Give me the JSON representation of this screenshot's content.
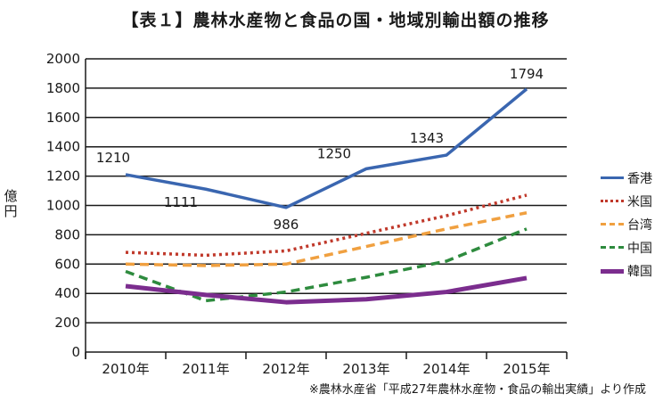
{
  "header": {
    "title": "【表１】農林水産物と食品の国・地域別輸出額の推移",
    "ylabel": "億円",
    "source": "※農林水産省「平成27年農林水産物・食品の輸出実績」より作成"
  },
  "chart_data": {
    "type": "line",
    "title": "【表１】農林水産物と食品の国・地域別輸出額の推移",
    "xlabel": "",
    "ylabel": "億円",
    "categories": [
      "2010年",
      "2011年",
      "2012年",
      "2013年",
      "2014年",
      "2015年"
    ],
    "ylim": [
      0,
      2000
    ],
    "yticks": [
      0,
      200,
      400,
      600,
      800,
      1000,
      1200,
      1400,
      1600,
      1800,
      2000
    ],
    "grid": true,
    "legend_position": "right",
    "series": [
      {
        "name": "香港",
        "values": [
          1210,
          1111,
          986,
          1250,
          1343,
          1794
        ],
        "color": "#3a66b0",
        "style": "solid",
        "labels": [
          "1210",
          "1111",
          "986",
          "1250",
          "1343",
          "1794"
        ]
      },
      {
        "name": "米国",
        "values": [
          680,
          660,
          690,
          810,
          930,
          1070
        ],
        "color": "#c0392b",
        "style": "dotted"
      },
      {
        "name": "台湾",
        "values": [
          600,
          590,
          600,
          720,
          840,
          950
        ],
        "color": "#f0a040",
        "style": "dashed"
      },
      {
        "name": "中国",
        "values": [
          550,
          350,
          410,
          510,
          620,
          840
        ],
        "color": "#2e8b3e",
        "style": "dashed"
      },
      {
        "name": "韓国",
        "values": [
          450,
          390,
          340,
          360,
          410,
          505
        ],
        "color": "#7b2d8e",
        "style": "thick"
      }
    ]
  }
}
